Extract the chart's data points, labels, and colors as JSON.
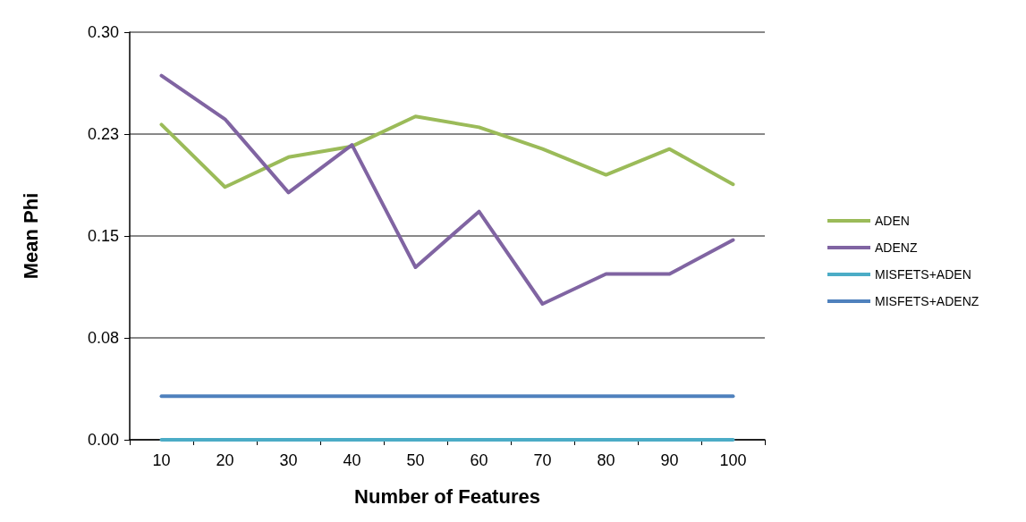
{
  "chart_data": {
    "type": "line",
    "xlabel": "Number of Features",
    "ylabel": "Mean Phi",
    "categories": [
      "10",
      "20",
      "30",
      "40",
      "50",
      "60",
      "70",
      "80",
      "90",
      "100"
    ],
    "series": [
      {
        "name": "ADEN",
        "color": "#9bbb59",
        "values": [
          0.232,
          0.186,
          0.208,
          0.216,
          0.238,
          0.23,
          0.214,
          0.195,
          0.214,
          0.188
        ]
      },
      {
        "name": "ADENZ",
        "color": "#8064a2",
        "values": [
          0.268,
          0.236,
          0.182,
          0.217,
          0.127,
          0.168,
          0.1,
          0.122,
          0.122,
          0.147
        ]
      },
      {
        "name": "MISFETS+ADEN",
        "color": "#4bacc6",
        "values": [
          0,
          0,
          0,
          0,
          0,
          0,
          0,
          0,
          0,
          0
        ]
      },
      {
        "name": "MISFETS+ADENZ",
        "color": "#4f81bd",
        "values": [
          0.032,
          0.032,
          0.032,
          0.032,
          0.032,
          0.032,
          0.032,
          0.032,
          0.032,
          0.032
        ]
      }
    ],
    "ylim": [
      0,
      0.3
    ],
    "yticks": [
      {
        "value": 0,
        "label": "0.00"
      },
      {
        "value": 0.075,
        "label": "0.08"
      },
      {
        "value": 0.15,
        "label": "0.15"
      },
      {
        "value": 0.225,
        "label": "0.23"
      },
      {
        "value": 0.3,
        "label": "0.30"
      }
    ],
    "grid": "y",
    "legend": "right",
    "marker": "none",
    "line_style": "solid"
  }
}
